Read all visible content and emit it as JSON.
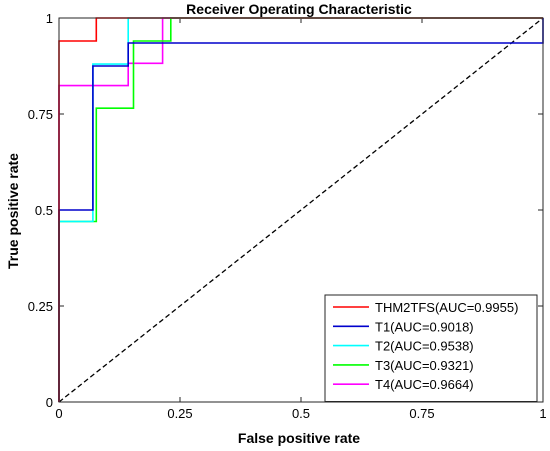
{
  "chart_data": {
    "type": "line",
    "title": "Receiver Operating Characteristic",
    "xlabel": "False positive rate",
    "ylabel": "True positive rate",
    "xlim": [
      0,
      1
    ],
    "ylim": [
      0,
      1
    ],
    "xticks": [
      0,
      0.25,
      0.5,
      0.75,
      1
    ],
    "yticks": [
      0,
      0.25,
      0.5,
      0.75,
      1
    ],
    "xtick_labels": [
      "0",
      "0.25",
      "0.5",
      "0.75",
      "1"
    ],
    "ytick_labels": [
      "0",
      "0.25",
      "0.5",
      "0.75",
      "1"
    ],
    "grid": false,
    "legend_position": "bottom-right",
    "reference_line": {
      "x": [
        0,
        1
      ],
      "y": [
        0,
        1
      ],
      "style": "dashed",
      "color": "#000000"
    },
    "series": [
      {
        "name": "THM2TFS(AUC=0.9955)",
        "color": "#ff0000",
        "x": [
          0,
          0,
          0,
          0.077,
          0.077,
          1
        ],
        "y": [
          0,
          0.82,
          0.94,
          0.94,
          1,
          1
        ]
      },
      {
        "name": "T1(AUC=0.9018)",
        "color": "#0000cc",
        "x": [
          0,
          0,
          0.07,
          0.07,
          0.143,
          0.143,
          1,
          1
        ],
        "y": [
          0,
          0.5,
          0.5,
          0.875,
          0.875,
          0.935,
          0.935,
          1
        ]
      },
      {
        "name": "T2(AUC=0.9538)",
        "color": "#00ffff",
        "x": [
          0,
          0,
          0.07,
          0.07,
          0.143,
          0.143,
          1
        ],
        "y": [
          0,
          0.47,
          0.47,
          0.88,
          0.88,
          1,
          1
        ]
      },
      {
        "name": "T3(AUC=0.9321)",
        "color": "#00ff00",
        "x": [
          0,
          0,
          0.077,
          0.077,
          0.154,
          0.154,
          0.231,
          0.231,
          1
        ],
        "y": [
          0,
          0.47,
          0.47,
          0.765,
          0.765,
          0.94,
          0.94,
          1,
          1
        ]
      },
      {
        "name": "T4(AUC=0.9664)",
        "color": "#ff00ff",
        "x": [
          0,
          0,
          0.143,
          0.143,
          0.214,
          0.214,
          1
        ],
        "y": [
          0,
          0.824,
          0.824,
          0.882,
          0.882,
          1,
          1
        ]
      }
    ]
  }
}
